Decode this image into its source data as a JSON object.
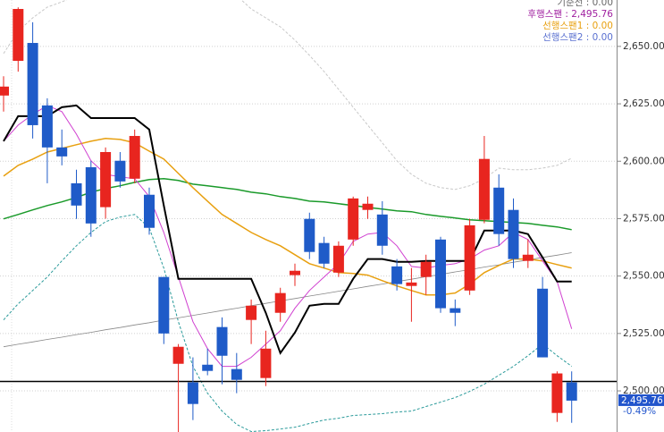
{
  "chart_data": {
    "type": "candlestick",
    "ylim": [
      2482.1,
      2670.2
    ],
    "yticks": [
      {
        "value": 2500,
        "label": "2,500.00"
      },
      {
        "value": 2525,
        "label": "2,525.00"
      },
      {
        "value": 2550,
        "label": "2,550.00"
      },
      {
        "value": 2575,
        "label": "2,575.00"
      },
      {
        "value": 2600,
        "label": "2,600.00"
      },
      {
        "value": 2625,
        "label": "2,625.00"
      },
      {
        "value": 2650,
        "label": "2,650.00"
      }
    ],
    "grid": true,
    "up_color": "#e8251f",
    "down_color": "#1f5bc8",
    "open": [
      2628.6,
      2643.7,
      2651.5,
      2624.3,
      2606,
      2590.4,
      2597.4,
      2580,
      2600.2,
      2592.4,
      2585.4,
      2549.6,
      2511.8,
      2503.7,
      2511.4,
      2527.8,
      2509.5,
      2530.9,
      2505.6,
      2534,
      2550.4,
      2574.9,
      2564.4,
      2551.5,
      2565.9,
      2578.8,
      2576.8,
      2554.2,
      2545.7,
      2549.6,
      2565.9,
      2536,
      2543.7,
      2574.5,
      2588.5,
      2578.8,
      2556.6,
      2544.5,
      2490.4,
      2503.7
    ],
    "high": [
      2637,
      2667,
      2660.5,
      2627.4,
      2613.8,
      2596.3,
      2600.2,
      2606,
      2604,
      2613.8,
      2588.5,
      2549.6,
      2520.4,
      2514.6,
      2518.4,
      2532,
      2516.5,
      2539.8,
      2526.2,
      2544.9,
      2555.4,
      2577.6,
      2567.1,
      2565.1,
      2584.6,
      2584.6,
      2582.6,
      2557.4,
      2553.5,
      2559.3,
      2567.1,
      2539.8,
      2574.9,
      2611,
      2594.3,
      2583.8,
      2566,
      2549.6,
      2508.5,
      2508.5
    ],
    "low": [
      2621.6,
      2639,
      2609.9,
      2590.4,
      2598.2,
      2574.9,
      2567.1,
      2575,
      2588.5,
      2590.4,
      2568,
      2520.4,
      2482,
      2487.3,
      2506.8,
      2502.9,
      2499,
      2520.4,
      2502.1,
      2530.1,
      2545.7,
      2557.4,
      2553.5,
      2549.6,
      2563.2,
      2574.9,
      2559.3,
      2543.7,
      2530.1,
      2541.8,
      2534,
      2528.2,
      2541.8,
      2573,
      2563.2,
      2553.5,
      2553.5,
      2514.6,
      2486.5,
      2486.1
    ],
    "close": [
      2632.5,
      2666.3,
      2615.7,
      2606,
      2602.1,
      2580.7,
      2572.9,
      2604,
      2591.2,
      2611,
      2571,
      2525,
      2519.2,
      2494.3,
      2508.7,
      2515.3,
      2504.8,
      2537.1,
      2518.4,
      2542.6,
      2552.3,
      2560.5,
      2555.4,
      2563.2,
      2583.8,
      2581.5,
      2563.2,
      2546.5,
      2547.2,
      2556.2,
      2536,
      2534,
      2572.1,
      2601,
      2568.3,
      2557.4,
      2559.3,
      2514.6,
      2507.6,
      2495.76
    ],
    "overlays": [
      {
        "color": "#c8c8c8",
        "width": 1,
        "dash": "3,2",
        "values": [
          2646.9,
          2656.6,
          2662.4,
          2667.1,
          2669.4,
          2672.1,
          2672.1,
          2672.1,
          2672.1,
          2672.1,
          2672.1,
          2672.1,
          2672.1,
          2672.1,
          2672.1,
          2672.1,
          2672.1,
          2666.3,
          2662.4,
          2658.5,
          2652.7,
          2646.1,
          2639.1,
          2631.3,
          2623.5,
          2615.7,
          2608,
          2600.2,
          2594.3,
          2590.4,
          2588.5,
          2587.7,
          2589.3,
          2592.4,
          2597,
          2596.3,
          2596.3,
          2597,
          2598.2,
          2601.3
        ]
      },
      {
        "color": "#2a9a9a",
        "width": 1,
        "dash": "3,2",
        "values": [
          2530.9,
          2537.9,
          2543.7,
          2549.6,
          2556.6,
          2563.2,
          2569,
          2573.7,
          2575.7,
          2576.8,
          2571,
          2553.5,
          2530.1,
          2510.7,
          2499,
          2491.2,
          2485.4,
          2482.3,
          2482.7,
          2483.4,
          2484.2,
          2485.8,
          2487.3,
          2488.1,
          2489.3,
          2489.7,
          2490.1,
          2490.8,
          2491.2,
          2493.2,
          2495.1,
          2497.1,
          2499.8,
          2502.9,
          2506.8,
          2510.7,
          2515.3,
          2520.4,
          2515.3,
          2510.7
        ]
      },
      {
        "color": "#888888",
        "width": 0.8,
        "dash": "",
        "values": [
          2519.2,
          2520.3,
          2521.3,
          2522.4,
          2523.4,
          2524.5,
          2525.5,
          2526.6,
          2527.6,
          2528.7,
          2529.7,
          2530.8,
          2531.8,
          2532.9,
          2533.9,
          2535,
          2536,
          2537.1,
          2538.1,
          2539.2,
          2540.2,
          2541.3,
          2542.3,
          2543.4,
          2544.4,
          2545.5,
          2546.5,
          2547.6,
          2548.6,
          2549.7,
          2550.7,
          2551.8,
          2552.8,
          2553.9,
          2554.9,
          2556,
          2557,
          2558.1,
          2559.1,
          2560.2
        ]
      },
      {
        "color": "#1a9a2a",
        "width": 1.5,
        "dash": "",
        "values": [
          2574.9,
          2576.8,
          2578.8,
          2580.7,
          2582.3,
          2584.2,
          2586.5,
          2588.1,
          2589.3,
          2590.8,
          2592,
          2592.4,
          2591.6,
          2590,
          2589.3,
          2588.5,
          2587.7,
          2586.5,
          2585.8,
          2584.6,
          2583.8,
          2582.6,
          2582.3,
          2581.5,
          2580.7,
          2579.9,
          2579.2,
          2578.4,
          2578,
          2576.8,
          2576,
          2575.3,
          2574.5,
          2574.1,
          2573.7,
          2573.3,
          2572.9,
          2572.1,
          2571.4,
          2570.2
        ]
      },
      {
        "color": "#e8a010",
        "width": 1.5,
        "dash": "",
        "values": [
          2593.5,
          2598.2,
          2600.9,
          2604,
          2605.6,
          2607.2,
          2608.7,
          2609.9,
          2609.5,
          2608,
          2604.4,
          2600.9,
          2594.7,
          2588.5,
          2582.6,
          2576.8,
          2572.9,
          2569,
          2565.9,
          2563.2,
          2559.3,
          2555.4,
          2553.5,
          2551.5,
          2551.1,
          2550.4,
          2548,
          2545.7,
          2543.7,
          2541.8,
          2541.8,
          2542.6,
          2546.5,
          2551.5,
          2554.6,
          2557.4,
          2557.4,
          2556.6,
          2555,
          2553.5
        ]
      },
      {
        "color": "#d040d0",
        "width": 1,
        "dash": "",
        "values": [
          2608.7,
          2615.7,
          2620.4,
          2624.3,
          2621.6,
          2611.8,
          2600.2,
          2594.3,
          2593.2,
          2592.4,
          2584.6,
          2569,
          2549.6,
          2530.1,
          2518.4,
          2510.7,
          2510.7,
          2514.6,
          2520.4,
          2526.2,
          2536,
          2543.7,
          2549.6,
          2555.4,
          2565.1,
          2568.3,
          2569,
          2563.2,
          2554.2,
          2553.5,
          2554.6,
          2555.4,
          2557.4,
          2561.3,
          2563.2,
          2569,
          2565.9,
          2556.6,
          2547.6,
          2527
        ]
      },
      {
        "color": "#000000",
        "width": 2,
        "dash": "",
        "values": [
          2608.7,
          2619.6,
          2619.6,
          2619.6,
          2623.5,
          2624.3,
          2618.8,
          2618.8,
          2618.8,
          2618.8,
          2613.8,
          2580.7,
          2548.8,
          2548.8,
          2548.8,
          2548.8,
          2548.8,
          2548.8,
          2534,
          2516.5,
          2525.4,
          2537.1,
          2537.9,
          2537.9,
          2548.8,
          2557.4,
          2557.4,
          2556.2,
          2556.2,
          2556.6,
          2556.6,
          2556.6,
          2556.6,
          2569.8,
          2569.8,
          2569.8,
          2568.3,
          2558.1,
          2547.6,
          2547.6
        ]
      }
    ],
    "hline": 2504.1,
    "legend": [
      {
        "label": "기준선 : 0.00",
        "color": "#666666"
      },
      {
        "label": "후행스팬 : 2,495.76",
        "color": "#a020a0"
      },
      {
        "label": "선행스팬1 : 0.00",
        "color": "#e8a010"
      },
      {
        "label": "선행스팬2 : 0.00",
        "color": "#5a70d0"
      }
    ],
    "last": {
      "value": 2495.76,
      "label": "2,495.76",
      "change_label": "-0.49%",
      "color": "#2255cc"
    }
  }
}
